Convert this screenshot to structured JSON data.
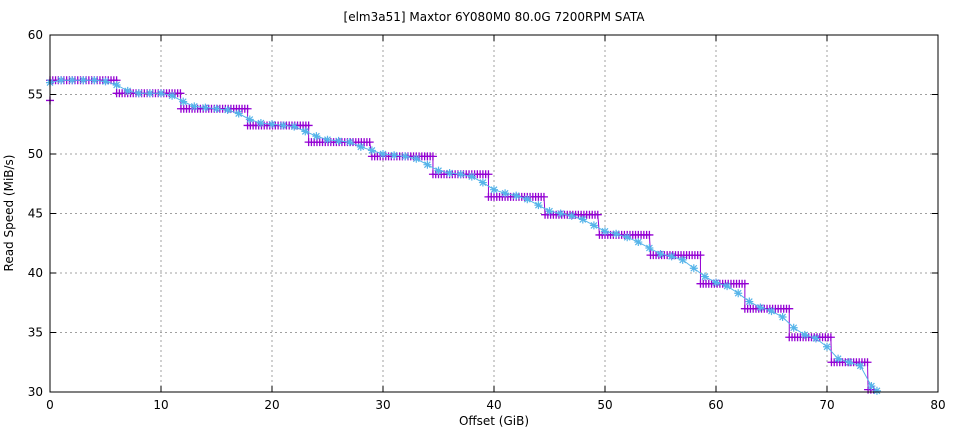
{
  "chart_data": {
    "type": "line",
    "title": "[elm3a51] Maxtor 6Y080M0 80.0G 7200RPM SATA",
    "xlabel": "Offset (GiB)",
    "ylabel": "Read Speed (MiB/s)",
    "xlim": [
      0,
      80
    ],
    "ylim": [
      30,
      60
    ],
    "xticks": [
      "0",
      "10",
      "20",
      "30",
      "40",
      "50",
      "60",
      "70",
      "80"
    ],
    "yticks": [
      "30",
      "35",
      "40",
      "45",
      "50",
      "55",
      "60"
    ],
    "grid": true,
    "colors": {
      "raw": "#9400d3",
      "smoothed": "#56b4e9"
    },
    "series": [
      {
        "marker": "plus",
        "steps": [
          [
            0.0,
            6.0,
            56.2
          ],
          [
            6.0,
            11.8,
            55.1
          ],
          [
            11.8,
            17.8,
            53.8
          ],
          [
            17.8,
            23.3,
            52.4
          ],
          [
            23.3,
            29.0,
            51.0
          ],
          [
            29.0,
            34.5,
            49.8
          ],
          [
            34.5,
            39.5,
            48.3
          ],
          [
            39.5,
            44.6,
            46.4
          ],
          [
            44.6,
            49.5,
            44.9
          ],
          [
            49.5,
            54.1,
            43.2
          ],
          [
            54.1,
            58.6,
            41.5
          ],
          [
            58.6,
            62.6,
            39.1
          ],
          [
            62.6,
            66.6,
            37.0
          ],
          [
            66.6,
            70.4,
            34.6
          ],
          [
            70.4,
            73.7,
            32.5
          ],
          [
            73.7,
            74.3,
            30.2
          ]
        ],
        "first_point": [
          0.0,
          54.5
        ]
      },
      {
        "marker": "star",
        "x": [
          0,
          1,
          2,
          3,
          4,
          5,
          6,
          7,
          8,
          9,
          10,
          11,
          12,
          13,
          14,
          15,
          16,
          17,
          18,
          19,
          20,
          21,
          22,
          23,
          24,
          25,
          26,
          27,
          28,
          29,
          30,
          31,
          32,
          33,
          34,
          35,
          36,
          37,
          38,
          39,
          40,
          41,
          42,
          43,
          44,
          45,
          46,
          47,
          48,
          49,
          50,
          51,
          52,
          53,
          54,
          55,
          56,
          57,
          58,
          59,
          60,
          61,
          62,
          63,
          64,
          65,
          66,
          67,
          68,
          69,
          70,
          71,
          72,
          73,
          74,
          74.5
        ],
        "y": [
          56.0,
          56.2,
          56.2,
          56.2,
          56.2,
          56.1,
          55.8,
          55.3,
          55.1,
          55.1,
          55.1,
          54.9,
          54.4,
          54.0,
          53.9,
          53.8,
          53.7,
          53.4,
          52.9,
          52.6,
          52.5,
          52.4,
          52.3,
          51.9,
          51.5,
          51.2,
          51.1,
          51.0,
          50.6,
          50.3,
          50.0,
          49.9,
          49.8,
          49.6,
          49.1,
          48.6,
          48.4,
          48.3,
          48.1,
          47.6,
          47.0,
          46.7,
          46.5,
          46.2,
          45.7,
          45.2,
          45.0,
          44.8,
          44.5,
          44.0,
          43.5,
          43.3,
          43.0,
          42.6,
          42.1,
          41.6,
          41.4,
          41.1,
          40.4,
          39.7,
          39.2,
          38.9,
          38.3,
          37.6,
          37.1,
          36.8,
          36.3,
          35.4,
          34.8,
          34.5,
          33.8,
          32.8,
          32.5,
          32.2,
          30.5,
          30.1
        ]
      }
    ]
  }
}
